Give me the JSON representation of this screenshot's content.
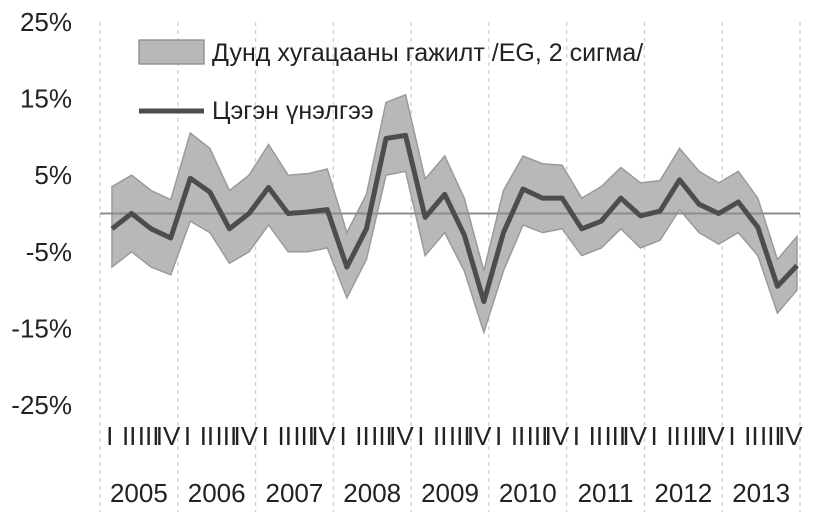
{
  "chart_data": {
    "type": "area",
    "title": "",
    "xlabel": "",
    "ylabel": "",
    "ylim": [
      -25,
      25
    ],
    "y_ticks": [
      "25%",
      "15%",
      "5%",
      "-5%",
      "-15%",
      "-25%"
    ],
    "y_tick_values": [
      25,
      15,
      5,
      -5,
      -15,
      -25
    ],
    "quarter_labels": [
      "I",
      "II",
      "III",
      "IV"
    ],
    "years": [
      "2005",
      "2006",
      "2007",
      "2008",
      "2009",
      "2010",
      "2011",
      "2012",
      "2013"
    ],
    "x": [
      "2005Q1",
      "2005Q2",
      "2005Q3",
      "2005Q4",
      "2006Q1",
      "2006Q2",
      "2006Q3",
      "2006Q4",
      "2007Q1",
      "2007Q2",
      "2007Q3",
      "2007Q4",
      "2008Q1",
      "2008Q2",
      "2008Q3",
      "2008Q4",
      "2009Q1",
      "2009Q2",
      "2009Q3",
      "2009Q4",
      "2010Q1",
      "2010Q2",
      "2010Q3",
      "2010Q4",
      "2011Q1",
      "2011Q2",
      "2011Q3",
      "2011Q4",
      "2012Q1",
      "2012Q2",
      "2012Q3",
      "2012Q4",
      "2013Q1",
      "2013Q2",
      "2013Q3",
      "2013Q4"
    ],
    "series": [
      {
        "name": "Дунд хугацааны гажилт /EG, 2 сигма/",
        "kind": "band",
        "color": "#b8b8b8",
        "upper": [
          3.5,
          5.0,
          3.0,
          1.8,
          10.5,
          8.5,
          3.0,
          5.0,
          9.0,
          5.0,
          5.2,
          5.8,
          -2.5,
          2.5,
          14.5,
          15.5,
          4.5,
          7.5,
          2.0,
          -7.5,
          3.0,
          7.5,
          6.5,
          6.3,
          2.0,
          3.5,
          6.0,
          4.0,
          4.3,
          8.5,
          5.5,
          4.0,
          5.5,
          2.0,
          -6.0,
          -3.0
        ],
        "lower": [
          -7.0,
          -5.0,
          -7.0,
          -8.0,
          -1.0,
          -2.5,
          -6.5,
          -5.0,
          -1.5,
          -5.0,
          -5.0,
          -4.5,
          -11.0,
          -6.0,
          5.0,
          5.5,
          -5.5,
          -2.5,
          -7.5,
          -15.5,
          -7.5,
          -1.5,
          -2.5,
          -2.0,
          -5.5,
          -4.5,
          -2.0,
          -4.5,
          -3.5,
          0.5,
          -2.5,
          -4.0,
          -2.5,
          -5.5,
          -13.0,
          -10.0
        ]
      },
      {
        "name": "Цэгэн үнэлгээ",
        "kind": "line",
        "color": "#4d4d4d",
        "values": [
          -2.0,
          0.0,
          -2.0,
          -3.2,
          4.6,
          2.8,
          -2.0,
          0.0,
          3.4,
          0.0,
          0.2,
          0.5,
          -7.0,
          -2.0,
          9.8,
          10.2,
          -0.5,
          2.5,
          -2.8,
          -11.5,
          -2.5,
          3.2,
          2.0,
          2.0,
          -2.0,
          -1.0,
          2.0,
          -0.3,
          0.3,
          4.4,
          1.2,
          0.0,
          1.5,
          -1.8,
          -9.5,
          -6.8
        ]
      }
    ],
    "reference_line": 0,
    "grid": "vertical dashed",
    "legend": "top-left"
  }
}
